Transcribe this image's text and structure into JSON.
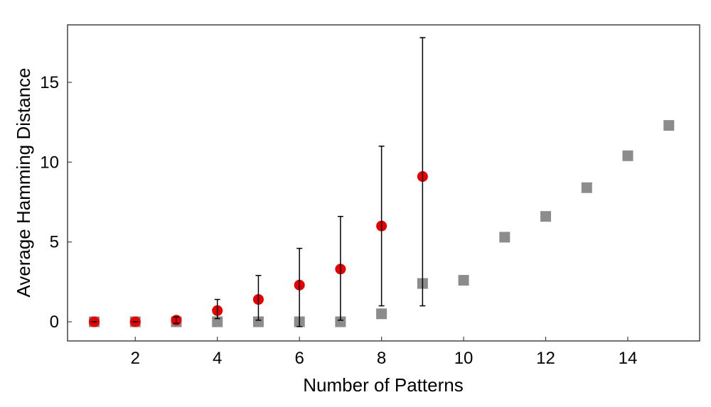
{
  "chart_data": {
    "type": "scatter",
    "title": "",
    "xlabel": "Number of Patterns",
    "ylabel": "Average Hamming Distance",
    "xlim": [
      0.35,
      15.75
    ],
    "ylim": [
      -1.2,
      18.6
    ],
    "xticks": [
      2,
      4,
      6,
      8,
      10,
      12,
      14
    ],
    "yticks": [
      0,
      5,
      10,
      15
    ],
    "grid": false,
    "legend": "none",
    "series": [
      {
        "marker": "square",
        "color": "#8c8c8c",
        "x": [
          1,
          2,
          3,
          4,
          5,
          6,
          7,
          8,
          9,
          10,
          11,
          12,
          13,
          14,
          15
        ],
        "y": [
          0,
          0,
          0,
          0,
          0,
          0,
          0,
          0.5,
          2.4,
          2.6,
          5.3,
          6.6,
          8.4,
          10.4,
          12.3
        ]
      },
      {
        "marker": "circle",
        "color": "#e60000",
        "error_bars": true,
        "x": [
          1,
          2,
          3,
          4,
          5,
          6,
          7,
          8,
          9
        ],
        "y": [
          0,
          0,
          0.1,
          0.7,
          1.4,
          2.3,
          3.3,
          6.0,
          9.1
        ],
        "error_low": [
          0,
          0,
          -0.1,
          0.2,
          0.1,
          -0.3,
          0.1,
          1.0,
          1.0
        ],
        "error_high": [
          0,
          0,
          0.3,
          1.4,
          2.9,
          4.6,
          6.6,
          11.0,
          17.8
        ]
      }
    ]
  }
}
